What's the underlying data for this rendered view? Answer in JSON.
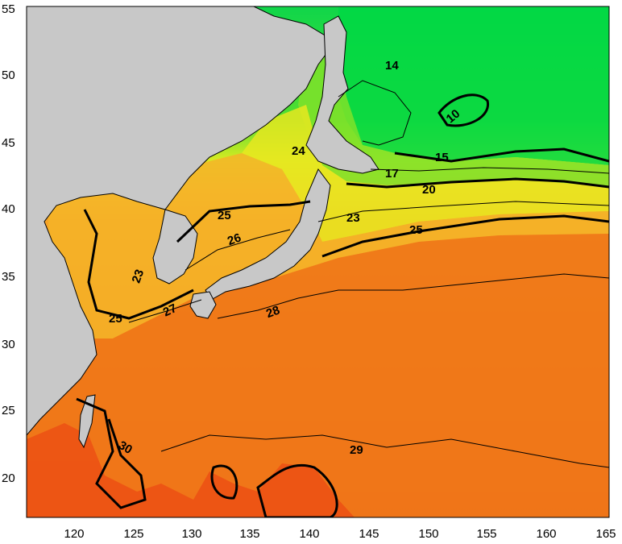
{
  "map": {
    "lon_ticks": [
      "120",
      "125",
      "130",
      "135",
      "140",
      "145",
      "150",
      "155",
      "160",
      "165"
    ],
    "lat_ticks": [
      "20",
      "25",
      "30",
      "35",
      "40",
      "45",
      "50",
      "55"
    ],
    "isotherm_labels": [
      {
        "text": "14"
      },
      {
        "text": "10"
      },
      {
        "text": "15"
      },
      {
        "text": "17"
      },
      {
        "text": "20"
      },
      {
        "text": "23"
      },
      {
        "text": "25"
      },
      {
        "text": "24"
      },
      {
        "text": "25"
      },
      {
        "text": "26"
      },
      {
        "text": "23"
      },
      {
        "text": "25"
      },
      {
        "text": "27"
      },
      {
        "text": "28"
      },
      {
        "text": "30"
      },
      {
        "text": "29"
      }
    ],
    "colors": {
      "land": "#c8c8c8",
      "cold": "#00d844",
      "cool": "#7fe22a",
      "mild": "#e8e820",
      "warm": "#f4b428",
      "hot": "#f07818",
      "hottest": "#ec5014"
    }
  }
}
